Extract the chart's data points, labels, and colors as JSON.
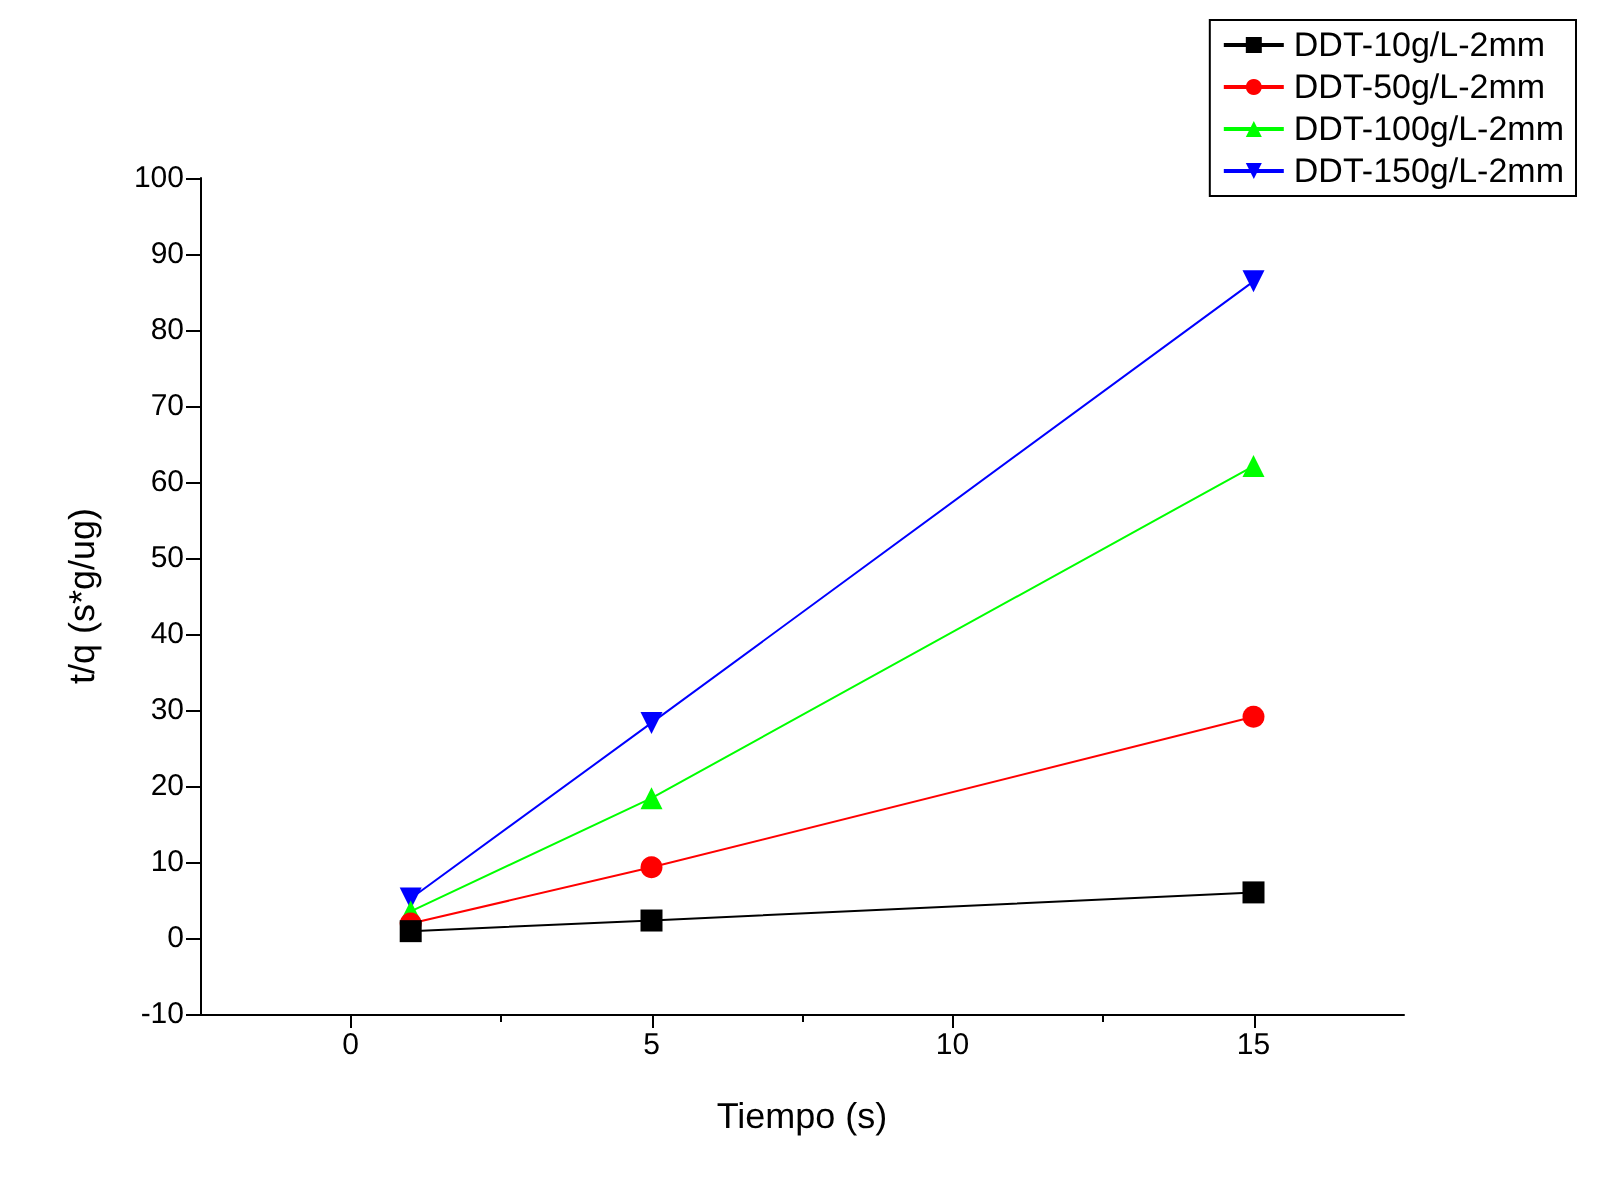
{
  "chart_data": {
    "type": "line",
    "xlabel": "Tiempo (s)",
    "ylabel": "t/q (s*g/ug)",
    "x": [
      1,
      5,
      15
    ],
    "series": [
      {
        "name": "DDT-10g/L-2mm",
        "color": "#000000",
        "marker": "square",
        "values": [
          0.9,
          2.3,
          6.0
        ]
      },
      {
        "name": "DDT-50g/L-2mm",
        "color": "#ff0000",
        "marker": "circle",
        "values": [
          1.9,
          9.3,
          29.1
        ]
      },
      {
        "name": "DDT-100g/L-2mm",
        "color": "#00ff00",
        "marker": "triangle",
        "values": [
          3.5,
          18.4,
          62.1
        ]
      },
      {
        "name": "DDT-150g/L-2mm",
        "color": "#0000ff",
        "marker": "triangle-down",
        "values": [
          5.2,
          28.3,
          86.4
        ]
      }
    ],
    "xlim": [
      -2.5,
      17.5
    ],
    "xticks": [
      0,
      5,
      10,
      15
    ],
    "ylim": [
      -10,
      100
    ],
    "yticks": [
      -10,
      0,
      10,
      20,
      30,
      40,
      50,
      60,
      70,
      80,
      90,
      100
    ],
    "grid": false,
    "legend": "top right"
  }
}
